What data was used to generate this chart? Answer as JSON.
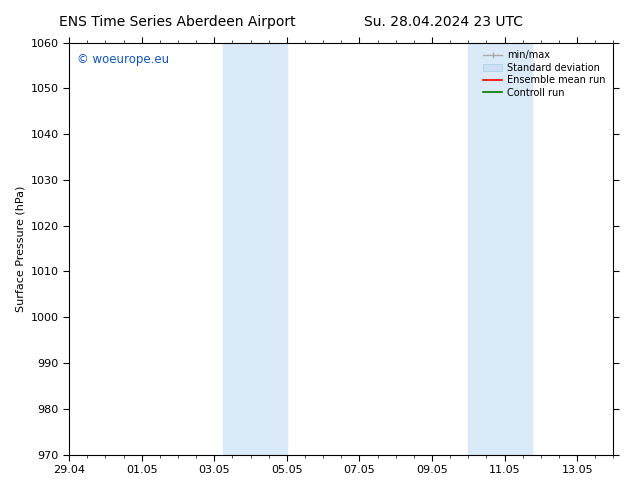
{
  "title_left": "ENS Time Series Aberdeen Airport",
  "title_right": "Su. 28.04.2024 23 UTC",
  "ylabel": "Surface Pressure (hPa)",
  "ylim": [
    970,
    1060
  ],
  "yticks": [
    970,
    980,
    990,
    1000,
    1010,
    1020,
    1030,
    1040,
    1050,
    1060
  ],
  "xlim_start": 0,
  "xlim_end": 15.0,
  "xtick_labels": [
    "29.04",
    "01.05",
    "03.05",
    "05.05",
    "07.05",
    "09.05",
    "11.05",
    "13.05"
  ],
  "xtick_positions": [
    0.0,
    2.0,
    4.0,
    6.0,
    8.0,
    10.0,
    12.0,
    14.0
  ],
  "shaded_bands": [
    {
      "x_start": 4.25,
      "x_end": 6.0
    },
    {
      "x_start": 11.0,
      "x_end": 12.75
    }
  ],
  "shaded_color": "#daeaf8",
  "watermark_text": "© woeurope.eu",
  "watermark_color": "#1155bb",
  "legend_items": [
    {
      "label": "min/max"
    },
    {
      "label": "Standard deviation"
    },
    {
      "label": "Ensemble mean run"
    },
    {
      "label": "Controll run"
    }
  ],
  "legend_colors": [
    "#aaaaaa",
    "#cce0f5",
    "#ff0000",
    "#007700"
  ],
  "bg_color": "#ffffff",
  "title_fontsize": 10,
  "axis_fontsize": 8,
  "tick_fontsize": 8
}
